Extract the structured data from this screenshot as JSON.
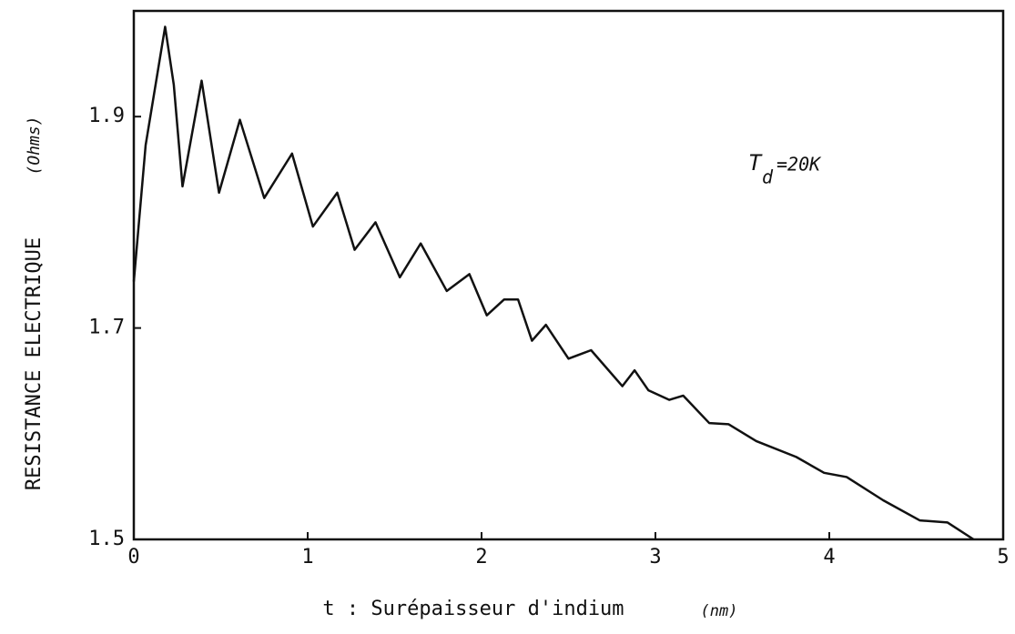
{
  "chart_data": {
    "type": "line",
    "xlabel": "t : Surépaisseur d'indium",
    "xlabel_unit": "(nm)",
    "ylabel": "RESISTANCE ELECTRIQUE",
    "ylabel_unit": "(Ohms)",
    "annotation": {
      "main": "T",
      "sub": "d",
      "tail": "=20K"
    },
    "x": [
      0,
      0.068,
      0.18,
      0.23,
      0.28,
      0.39,
      0.49,
      0.61,
      0.75,
      0.91,
      1.03,
      1.17,
      1.27,
      1.39,
      1.53,
      1.65,
      1.8,
      1.93,
      2.03,
      2.13,
      2.21,
      2.29,
      2.37,
      2.5,
      2.63,
      2.81,
      2.88,
      2.96,
      3.08,
      3.16,
      3.31,
      3.42,
      3.58,
      3.81,
      3.97,
      4.1,
      4.31,
      4.52,
      4.68,
      4.83
    ],
    "series": [
      {
        "name": null,
        "color": "#111111",
        "values": [
          1.744,
          1.873,
          1.985,
          1.93,
          1.834,
          1.934,
          1.828,
          1.897,
          1.823,
          1.865,
          1.796,
          1.828,
          1.774,
          1.8,
          1.748,
          1.78,
          1.735,
          1.751,
          1.712,
          1.727,
          1.727,
          1.688,
          1.703,
          1.671,
          1.679,
          1.645,
          1.66,
          1.641,
          1.632,
          1.636,
          1.61,
          1.609,
          1.593,
          1.578,
          1.563,
          1.559,
          1.537,
          1.518,
          1.516,
          1.5
        ]
      }
    ],
    "xlim": [
      0,
      5
    ],
    "xticks": [
      0,
      1,
      2,
      3,
      4,
      5
    ],
    "ylim": [
      1.5,
      2.0
    ],
    "yticks": [
      1.5,
      1.7,
      1.9
    ],
    "grid": false
  }
}
